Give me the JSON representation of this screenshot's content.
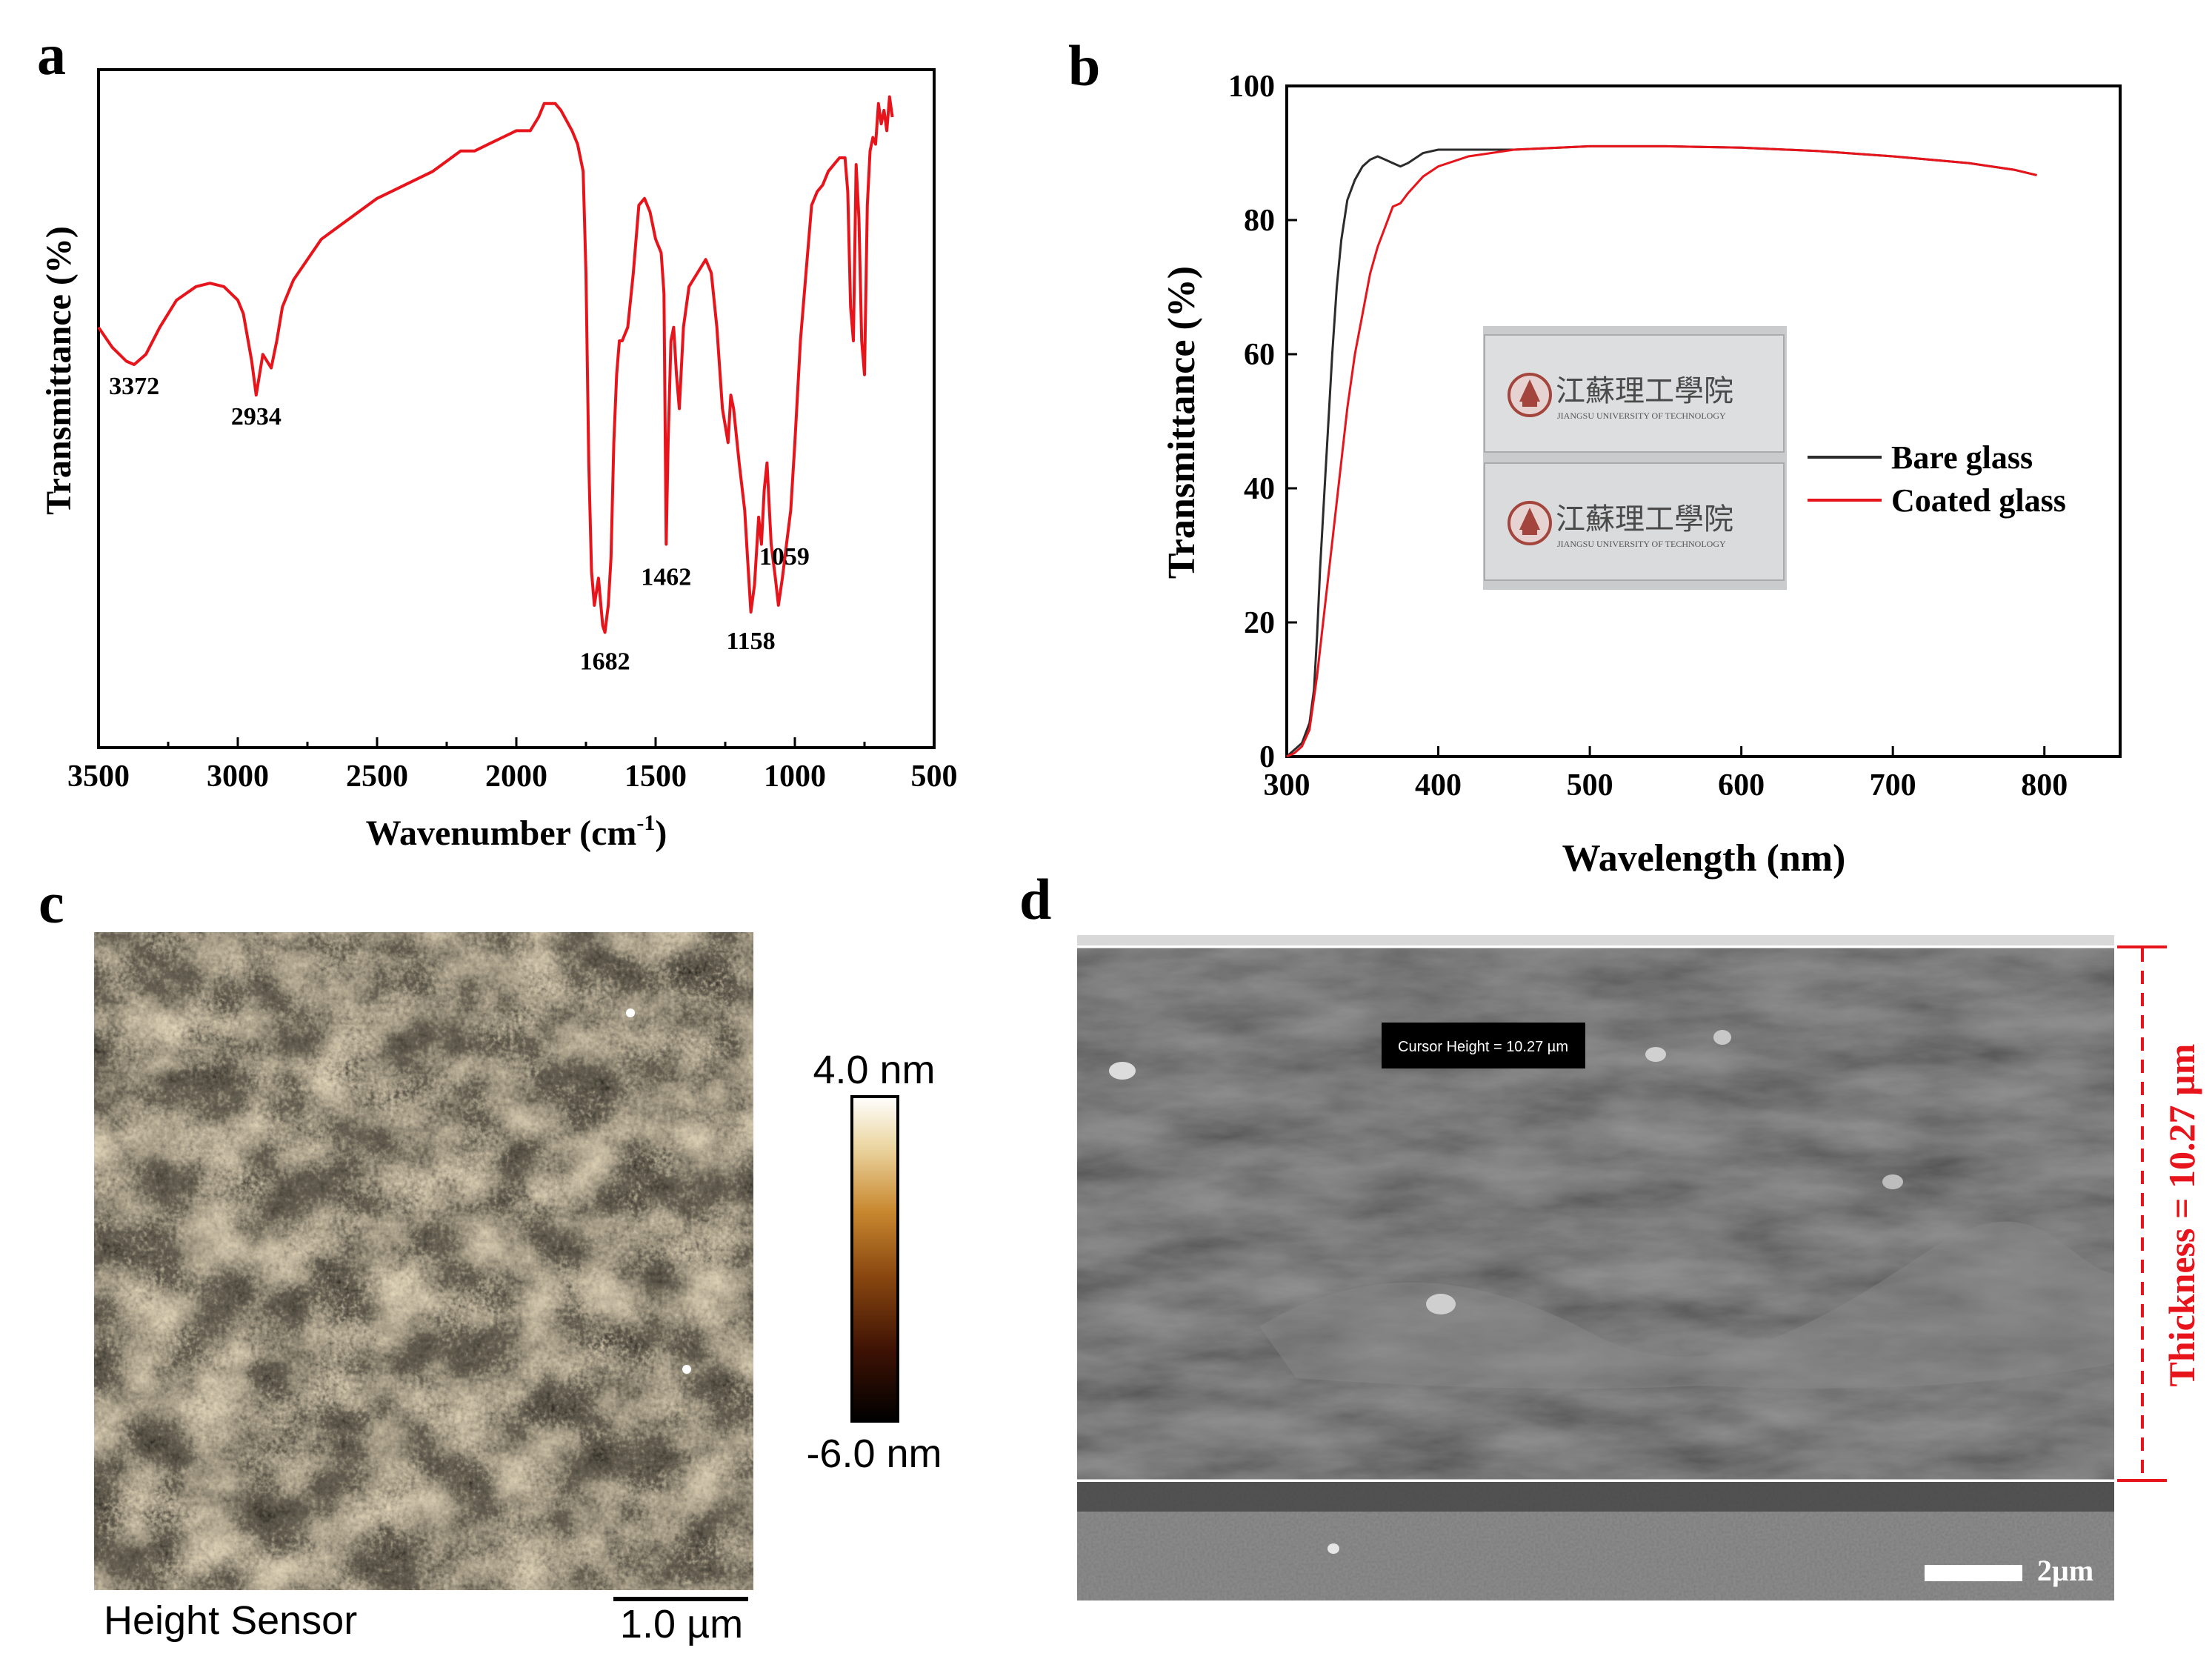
{
  "panels": {
    "a": {
      "letter": "a"
    },
    "b": {
      "letter": "b"
    },
    "c": {
      "letter": "c"
    },
    "d": {
      "letter": "d"
    }
  },
  "chart_data": [
    {
      "panel": "a",
      "type": "line",
      "xlabel_main": "Wavenumber (cm",
      "xlabel_sup": "-1",
      "xlabel_tail": ")",
      "ylabel": "Transmittance (%)",
      "xlim": [
        3500,
        500
      ],
      "x_ticks": [
        3500,
        3000,
        2500,
        2000,
        1500,
        1000,
        500
      ],
      "y_ticks_shown": false,
      "color": "#e8141b",
      "series": [
        {
          "x": [
            3500,
            3450,
            3400,
            3372,
            3330,
            3280,
            3220,
            3150,
            3100,
            3050,
            3000,
            2980,
            2950,
            2934,
            2910,
            2880,
            2860,
            2840,
            2800,
            2750,
            2700,
            2650,
            2600,
            2500,
            2400,
            2300,
            2200,
            2150,
            2100,
            2050,
            2000,
            1950,
            1920,
            1900,
            1860,
            1840,
            1800,
            1780,
            1760,
            1750,
            1740,
            1730,
            1720,
            1705,
            1690,
            1682,
            1670,
            1660,
            1650,
            1640,
            1630,
            1620,
            1610,
            1600,
            1580,
            1560,
            1540,
            1520,
            1500,
            1480,
            1470,
            1462,
            1455,
            1445,
            1435,
            1425,
            1415,
            1400,
            1380,
            1350,
            1320,
            1300,
            1280,
            1260,
            1240,
            1230,
            1220,
            1200,
            1180,
            1170,
            1158,
            1145,
            1130,
            1120,
            1110,
            1100,
            1085,
            1070,
            1059,
            1045,
            1030,
            1015,
            1000,
            980,
            960,
            940,
            920,
            900,
            880,
            860,
            840,
            820,
            810,
            800,
            790,
            780,
            770,
            760,
            750,
            740,
            730,
            720,
            710,
            700,
            690,
            680,
            670,
            660,
            650
          ],
          "y": [
            62,
            59,
            57,
            56.5,
            58,
            62,
            66,
            68,
            68.5,
            68,
            66,
            64,
            57,
            52,
            58,
            56,
            60,
            65,
            69,
            72,
            75,
            76.5,
            78,
            81,
            83,
            85,
            88,
            88,
            89,
            90,
            91,
            91,
            93,
            95,
            95,
            94,
            91,
            89,
            85,
            70,
            42,
            26,
            21,
            25,
            18,
            17,
            21,
            28,
            45,
            55,
            60,
            60,
            61,
            62,
            70,
            80,
            81,
            79,
            75,
            73,
            67,
            30,
            45,
            60,
            62,
            55,
            50,
            62,
            68,
            70,
            72,
            70,
            62,
            50,
            45,
            52,
            50,
            42,
            35,
            28,
            20,
            24,
            34,
            30,
            38,
            42,
            30,
            25,
            21,
            25,
            30,
            35,
            45,
            60,
            70,
            80,
            82,
            83,
            85,
            86,
            87,
            87,
            82,
            65,
            60,
            86,
            78,
            60,
            55,
            80,
            88,
            90,
            89,
            95,
            92,
            94,
            91,
            96,
            93
          ]
        }
      ],
      "annotations": [
        {
          "x": 3372,
          "label": "3372"
        },
        {
          "x": 2934,
          "label": "2934"
        },
        {
          "x": 1682,
          "label": "1682"
        },
        {
          "x": 1462,
          "label": "1462"
        },
        {
          "x": 1158,
          "label": "1158"
        },
        {
          "x": 1059,
          "label": "1059"
        }
      ]
    },
    {
      "panel": "b",
      "type": "line",
      "xlabel": "Wavelength (nm)",
      "ylabel": "Transmittance (%)",
      "xlim": [
        300,
        850
      ],
      "ylim": [
        0,
        100
      ],
      "x_ticks": [
        300,
        400,
        500,
        600,
        700,
        800
      ],
      "y_ticks": [
        0,
        20,
        40,
        60,
        80,
        100
      ],
      "legend_placement": "right",
      "series": [
        {
          "name": "Bare glass",
          "color": "#2b2b2b",
          "x": [
            300,
            305,
            310,
            315,
            318,
            320,
            322,
            325,
            328,
            330,
            333,
            336,
            340,
            345,
            350,
            355,
            360,
            365,
            370,
            375,
            380,
            390,
            400,
            450,
            500,
            550,
            600,
            650,
            700,
            750,
            780,
            795
          ],
          "y": [
            0,
            1,
            2,
            5,
            10,
            18,
            28,
            40,
            52,
            60,
            70,
            77,
            83,
            86,
            88,
            89,
            89.5,
            89,
            88.5,
            88,
            88.5,
            90,
            90.5,
            90.5,
            91,
            91,
            90.8,
            90.3,
            89.5,
            88.5,
            87.5,
            86.7
          ]
        },
        {
          "name": "Coated glass",
          "color": "#e8141b",
          "x": [
            300,
            305,
            310,
            315,
            320,
            325,
            330,
            335,
            340,
            345,
            350,
            355,
            360,
            365,
            370,
            375,
            380,
            390,
            400,
            420,
            450,
            500,
            550,
            600,
            650,
            700,
            750,
            780,
            795
          ],
          "y": [
            0,
            0.5,
            1.5,
            4,
            12,
            22,
            32,
            42,
            52,
            60,
            66,
            72,
            76,
            79,
            82,
            82.5,
            84,
            86.5,
            88,
            89.5,
            90.5,
            91,
            91,
            90.8,
            90.3,
            89.5,
            88.5,
            87.5,
            86.7
          ]
        }
      ],
      "inset_photo": {
        "caption_cn": "江蘇理工學院",
        "caption_en": "JIANGSU UNIVERSITY OF TECHNOLOGY"
      }
    }
  ],
  "afm": {
    "colorbar_max": "4.0 nm",
    "colorbar_min": "-6.0 nm",
    "caption": "Height Sensor",
    "scale": "1.0 µm",
    "colormap": [
      "#000000",
      "#4a1a06",
      "#9a5a12",
      "#d79a3a",
      "#f4e6c2",
      "#ffffff"
    ]
  },
  "sem": {
    "cursor_label": "Cursor Height = 10.27 µm",
    "thickness_label": "Thickness = 10.27 µm",
    "scale": "2µm",
    "thickness_color": "#e8141b"
  }
}
